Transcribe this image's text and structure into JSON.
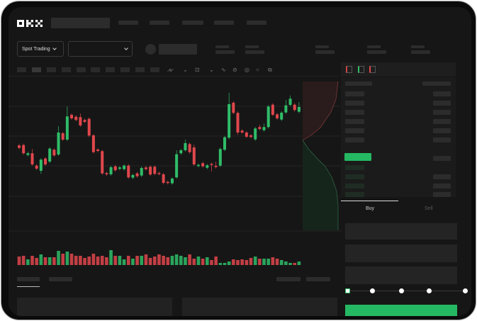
{
  "brand": {
    "logo_text": "OKX"
  },
  "toolbar": {
    "market_select": "Spot Trading"
  },
  "trade": {
    "buy_tab": "Buy",
    "sell_tab": "Sell"
  },
  "colors": {
    "up": "#2fbd68",
    "down": "#e0474c",
    "background": "#161616",
    "accent": "#25b863"
  },
  "chart_data": {
    "type": "candlestick",
    "grid": true,
    "candles": [
      [
        96.7,
        98.7,
        91.3,
        93.3
      ],
      [
        97.3,
        99.3,
        83.7,
        85.7
      ],
      [
        83.3,
        87.7,
        81.3,
        85.7
      ],
      [
        85.7,
        91.7,
        68,
        70
      ],
      [
        68.3,
        70.3,
        62,
        64
      ],
      [
        61,
        78.7,
        56.7,
        76.7
      ],
      [
        78.3,
        80.3,
        68,
        70
      ],
      [
        74,
        94.3,
        72,
        92.3
      ],
      [
        90.7,
        92.7,
        80.7,
        82.7
      ],
      [
        84,
        124,
        82,
        115
      ],
      [
        114,
        116,
        103,
        105
      ],
      [
        105,
        151.7,
        103,
        137.7
      ],
      [
        140,
        142,
        133,
        135
      ],
      [
        137.3,
        139.3,
        130.7,
        132.7
      ],
      [
        136.7,
        141.7,
        123,
        125
      ],
      [
        132.7,
        134.7,
        128,
        130
      ],
      [
        134.3,
        136.3,
        108.7,
        110.7
      ],
      [
        111,
        113,
        85.3,
        87.3
      ],
      [
        91,
        93,
        87,
        89
      ],
      [
        88.7,
        90.7,
        55.3,
        57.3
      ],
      [
        57.7,
        59.7,
        54,
        56
      ],
      [
        56,
        68,
        54,
        66
      ],
      [
        67.3,
        69.3,
        59.7,
        61.7
      ],
      [
        63.7,
        67.7,
        61.7,
        65.7
      ],
      [
        63.3,
        70.3,
        61.3,
        68.3
      ],
      [
        68.3,
        70.3,
        49.7,
        51.7
      ],
      [
        51.3,
        57,
        49.3,
        55
      ],
      [
        57.3,
        59.3,
        51.3,
        53.3
      ],
      [
        54.3,
        67,
        52.3,
        65
      ],
      [
        65.7,
        67.7,
        61.3,
        63.3
      ],
      [
        66.7,
        68.7,
        53.7,
        55.7
      ],
      [
        66.7,
        68.7,
        54.7,
        56.7
      ],
      [
        57.7,
        59.7,
        54.7,
        56.7
      ],
      [
        56,
        58,
        42,
        44
      ],
      [
        45.3,
        47.3,
        41.7,
        43.7
      ],
      [
        43.3,
        52,
        41.3,
        50
      ],
      [
        51.7,
        90,
        49.7,
        84.3
      ],
      [
        85.7,
        92,
        83.7,
        90
      ],
      [
        90,
        105,
        88,
        100
      ],
      [
        98.7,
        100.7,
        85.3,
        87.3
      ],
      [
        94,
        98,
        68,
        70
      ],
      [
        67.7,
        71.3,
        65.7,
        69.3
      ],
      [
        71.7,
        73.7,
        65.3,
        67.3
      ],
      [
        65.3,
        70.7,
        63.3,
        68.7
      ],
      [
        70.7,
        72.7,
        60,
        69.3
      ],
      [
        68,
        74,
        64.3,
        66.3
      ],
      [
        68.3,
        93.7,
        66.3,
        91.7
      ],
      [
        90.7,
        110.3,
        88.7,
        108.3
      ],
      [
        107.7,
        171,
        105.7,
        155
      ],
      [
        157,
        159,
        140.7,
        142.7
      ],
      [
        142.7,
        144.7,
        111.7,
        115
      ],
      [
        117.7,
        119.7,
        113,
        115
      ],
      [
        115,
        117,
        107,
        109
      ],
      [
        111,
        113,
        106.7,
        108.7
      ],
      [
        105.3,
        122.7,
        103.3,
        120.7
      ],
      [
        122.7,
        126,
        118,
        120
      ],
      [
        118.3,
        127.7,
        116.3,
        122.7
      ],
      [
        122.7,
        153.7,
        120.7,
        151.7
      ],
      [
        154.3,
        156.3,
        138,
        140
      ],
      [
        140.7,
        142.7,
        133,
        135
      ],
      [
        133.3,
        145,
        131.3,
        143
      ],
      [
        143.3,
        160.7,
        141.3,
        153.3
      ],
      [
        154,
        167.3,
        152,
        162.7
      ],
      [
        154.3,
        156.3,
        144.7,
        146.7
      ],
      [
        144.3,
        158,
        142.3,
        151
      ]
    ],
    "candle_format": [
      "open",
      "high",
      "low",
      "close"
    ],
    "volume": [
      12,
      13,
      8,
      13,
      10,
      15,
      11,
      11,
      11,
      20,
      16,
      19,
      16,
      13,
      13,
      10,
      12,
      16,
      12,
      13,
      11,
      21,
      13,
      13,
      8,
      13,
      9,
      13,
      13,
      15,
      10,
      12,
      15,
      13,
      11,
      13,
      15,
      13,
      11,
      15,
      9,
      12,
      9,
      11,
      7,
      12,
      3,
      3,
      5,
      8,
      7,
      8,
      7,
      10,
      12,
      9,
      9,
      9,
      11,
      9,
      7,
      5,
      3,
      3,
      5
    ]
  }
}
